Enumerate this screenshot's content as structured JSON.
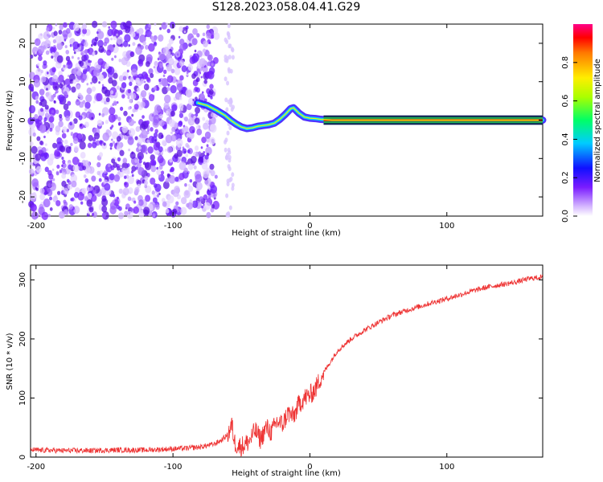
{
  "title": "S128.2023.058.04.41.G29",
  "colors": {
    "spectrum_primary": "#6a1cff",
    "snr_line": "#ee3333",
    "track_line": "#ff0000"
  },
  "chart_data": [
    {
      "type": "heatmap",
      "xlabel": "Height of straight line (km)",
      "ylabel": "Frequency (Hz)",
      "xlim": [
        -204,
        170
      ],
      "ylim": [
        -25,
        25
      ],
      "xticks": [
        -200,
        -100,
        0,
        100
      ],
      "yticks": [
        -20,
        -10,
        0,
        10,
        20
      ],
      "colorbar": {
        "label": "Normalized spectral amplitude",
        "range": [
          0,
          1
        ],
        "ticks": [
          0.0,
          0.2,
          0.4,
          0.6,
          0.8
        ]
      },
      "ridge": {
        "x": [
          -82,
          -75,
          -68,
          -62,
          -58,
          -54,
          -50,
          -46,
          -42,
          -38,
          -34,
          -30,
          -26,
          -22,
          -18,
          -14,
          -12,
          -8,
          -4,
          0,
          4,
          8,
          12,
          16,
          20,
          30,
          60,
          100,
          140,
          170
        ],
        "y": [
          4.5,
          3.8,
          2.5,
          1.2,
          0.0,
          -1.0,
          -1.8,
          -2.2,
          -2.0,
          -1.6,
          -1.4,
          -1.2,
          -0.8,
          0.2,
          1.5,
          3.0,
          3.2,
          1.8,
          0.8,
          0.5,
          0.4,
          0.2,
          0.1,
          0.0,
          0.0,
          0.0,
          0.0,
          0.0,
          0.0,
          0.0
        ]
      }
    },
    {
      "type": "line",
      "xlabel": "Height of straight line (km)",
      "ylabel": "SNR (10 * v/v)",
      "xlim": [
        -204,
        170
      ],
      "ylim": [
        0,
        325
      ],
      "xticks": [
        -200,
        -100,
        0,
        100
      ],
      "yticks": [
        0,
        100,
        200,
        300
      ],
      "series": [
        {
          "x": [
            -204,
            -180,
            -160,
            -140,
            -120,
            -100,
            -90,
            -80,
            -70,
            -65,
            -60,
            -57,
            -55,
            -52,
            -48,
            -44,
            -40,
            -36,
            -32,
            -28,
            -24,
            -20,
            -16,
            -12,
            -8,
            -4,
            0,
            4,
            8,
            12,
            16,
            20,
            30,
            40,
            50,
            60,
            70,
            80,
            90,
            100,
            110,
            120,
            130,
            140,
            150,
            160,
            170
          ],
          "y": [
            12,
            11,
            11,
            12,
            12,
            14,
            15,
            17,
            22,
            28,
            38,
            55,
            25,
            18,
            20,
            28,
            45,
            30,
            50,
            42,
            60,
            55,
            75,
            68,
            90,
            100,
            105,
            115,
            135,
            150,
            165,
            180,
            200,
            215,
            228,
            240,
            248,
            255,
            262,
            268,
            275,
            282,
            288,
            292,
            296,
            302,
            305
          ]
        }
      ]
    }
  ]
}
